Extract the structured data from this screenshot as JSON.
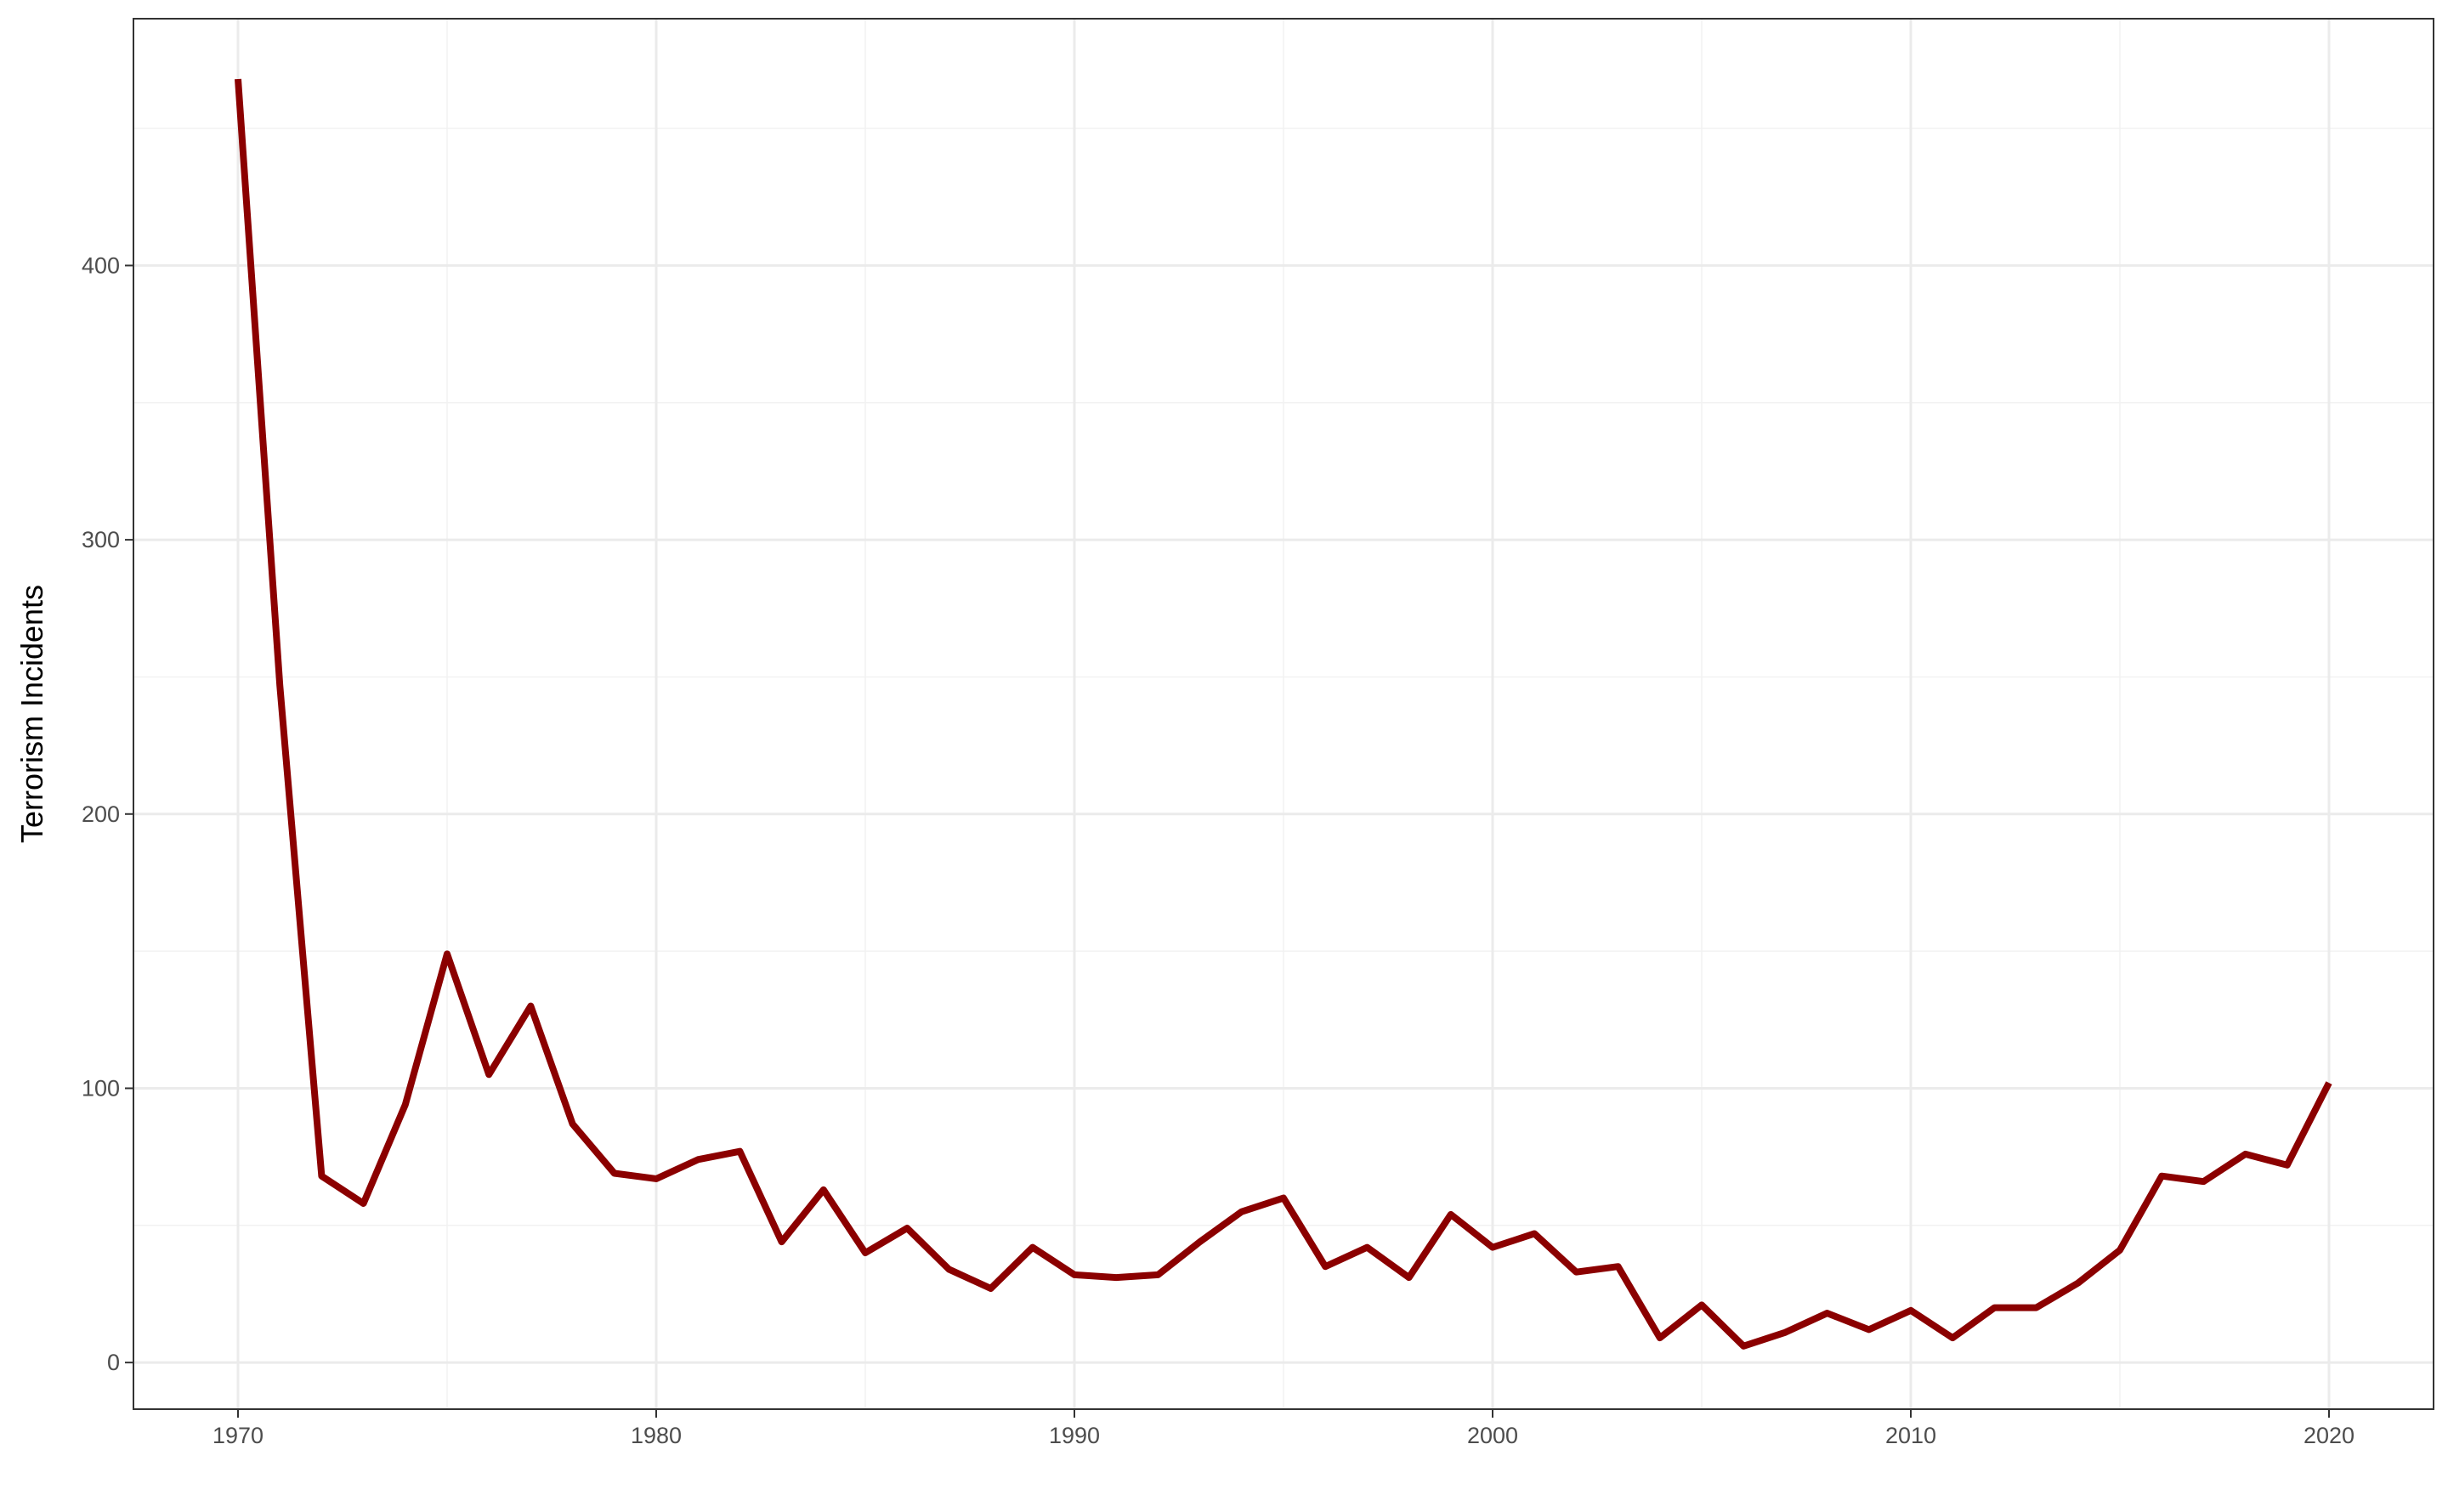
{
  "chart_data": {
    "type": "line",
    "title": "",
    "xlabel": "",
    "ylabel": "Terrorism Incidents",
    "xlim": [
      1967.5,
      2022.5
    ],
    "ylim": [
      -17,
      490
    ],
    "x_ticks": [
      1970,
      1980,
      1990,
      2000,
      2010,
      2020
    ],
    "y_ticks": [
      0,
      100,
      200,
      300,
      400
    ],
    "grid": true,
    "legend": "none",
    "line_color": "#8B0000",
    "x": [
      1970,
      1971,
      1972,
      1973,
      1974,
      1975,
      1976,
      1977,
      1978,
      1979,
      1980,
      1981,
      1982,
      1983,
      1984,
      1985,
      1986,
      1987,
      1988,
      1989,
      1990,
      1991,
      1992,
      1993,
      1994,
      1995,
      1996,
      1997,
      1998,
      1999,
      2000,
      2001,
      2002,
      2003,
      2004,
      2005,
      2006,
      2007,
      2008,
      2009,
      2010,
      2011,
      2012,
      2013,
      2014,
      2015,
      2016,
      2017,
      2018,
      2019,
      2020
    ],
    "y": [
      468,
      247,
      68,
      58,
      94,
      149,
      105,
      130,
      87,
      69,
      67,
      74,
      77,
      44,
      63,
      40,
      49,
      34,
      27,
      42,
      32,
      31,
      32,
      44,
      55,
      60,
      35,
      42,
      31,
      54,
      42,
      47,
      33,
      35,
      9,
      21,
      6,
      11,
      18,
      12,
      19,
      9,
      20,
      20,
      29,
      41,
      68,
      66,
      76,
      72,
      102
    ]
  }
}
